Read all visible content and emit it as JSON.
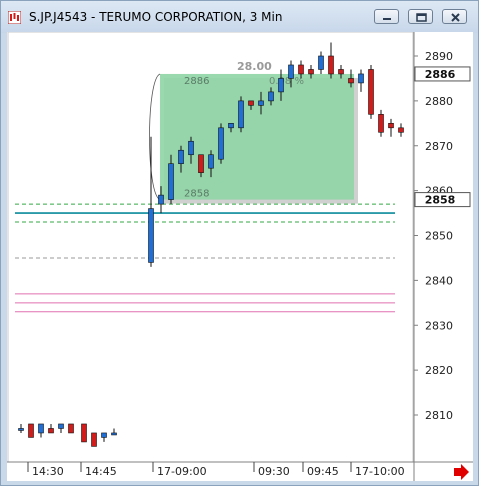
{
  "window": {
    "title": "S.JP.J4543 - TERUMO CORPORATION, 3 Min",
    "buttons": [
      "minimize",
      "restore",
      "close"
    ]
  },
  "colors": {
    "up": "#1f6fd6",
    "down": "#d21c1c",
    "zone": "#8fd4a5",
    "price_tag": "#ffffff"
  },
  "chart_data": {
    "type": "candlestick",
    "ylim": [
      2800,
      2893
    ],
    "yticks": [
      2810,
      2820,
      2830,
      2840,
      2850,
      2860,
      2870,
      2880,
      2890
    ],
    "xticks": [
      "14:30",
      "14:45",
      "17-09:00",
      "09:30",
      "09:45",
      "17-10:00"
    ],
    "price_labels": [
      {
        "value": 2886,
        "text": "2886"
      },
      {
        "value": 2858,
        "text": "2858"
      }
    ],
    "zone": {
      "top": 2886,
      "bottom": 2858,
      "top_label": "2886",
      "bottom_label": "2858",
      "size_label": "28.00",
      "percent_label": "0.98 %"
    },
    "hlines": [
      {
        "value": 2857,
        "color": "#33aa44",
        "style": "dash"
      },
      {
        "value": 2855,
        "color": "#2a9aa8",
        "style": "solid"
      },
      {
        "value": 2853,
        "color": "#33aa44",
        "style": "dash"
      },
      {
        "value": 2845,
        "color": "#999999",
        "style": "dash"
      },
      {
        "value": 2837,
        "color": "#e070b0",
        "style": "solid"
      },
      {
        "value": 2835,
        "color": "#e070b0",
        "style": "solid"
      },
      {
        "value": 2833,
        "color": "#e070b0",
        "style": "solid"
      }
    ],
    "candles": [
      {
        "o": 2807,
        "h": 2808,
        "l": 2806,
        "c": 2807
      },
      {
        "o": 2808,
        "h": 2808,
        "l": 2805,
        "c": 2805
      },
      {
        "o": 2806,
        "h": 2808,
        "l": 2805,
        "c": 2808
      },
      {
        "o": 2807,
        "h": 2808,
        "l": 2806,
        "c": 2806
      },
      {
        "o": 2807,
        "h": 2808,
        "l": 2806,
        "c": 2808
      },
      {
        "o": 2808,
        "h": 2808,
        "l": 2806,
        "c": 2806
      },
      {
        "o": 2808,
        "h": 2808,
        "l": 2804,
        "c": 2804
      },
      {
        "o": 2806,
        "h": 2806,
        "l": 2803,
        "c": 2803
      },
      {
        "o": 2805,
        "h": 2806,
        "l": 2804,
        "c": 2806
      },
      {
        "o": 2806,
        "h": 2807,
        "l": 2806,
        "c": 2806
      },
      {
        "o": 2844,
        "h": 2872,
        "l": 2843,
        "c": 2856
      },
      {
        "o": 2857,
        "h": 2861,
        "l": 2855,
        "c": 2859
      },
      {
        "o": 2858,
        "h": 2868,
        "l": 2857,
        "c": 2866
      },
      {
        "o": 2866,
        "h": 2870,
        "l": 2864,
        "c": 2869
      },
      {
        "o": 2868,
        "h": 2872,
        "l": 2866,
        "c": 2871
      },
      {
        "o": 2868,
        "h": 2868,
        "l": 2863,
        "c": 2864
      },
      {
        "o": 2865,
        "h": 2869,
        "l": 2863,
        "c": 2868
      },
      {
        "o": 2867,
        "h": 2875,
        "l": 2866,
        "c": 2874
      },
      {
        "o": 2874,
        "h": 2875,
        "l": 2873,
        "c": 2875
      },
      {
        "o": 2874,
        "h": 2881,
        "l": 2873,
        "c": 2880
      },
      {
        "o": 2880,
        "h": 2880,
        "l": 2878,
        "c": 2879
      },
      {
        "o": 2879,
        "h": 2882,
        "l": 2877,
        "c": 2880
      },
      {
        "o": 2880,
        "h": 2883,
        "l": 2879,
        "c": 2882
      },
      {
        "o": 2882,
        "h": 2887,
        "l": 2880,
        "c": 2885
      },
      {
        "o": 2885,
        "h": 2889,
        "l": 2883,
        "c": 2888
      },
      {
        "o": 2888,
        "h": 2889,
        "l": 2885,
        "c": 2886
      },
      {
        "o": 2887,
        "h": 2888,
        "l": 2885,
        "c": 2886
      },
      {
        "o": 2887,
        "h": 2891,
        "l": 2886,
        "c": 2890
      },
      {
        "o": 2890,
        "h": 2893,
        "l": 2885,
        "c": 2886
      },
      {
        "o": 2887,
        "h": 2888,
        "l": 2885,
        "c": 2886
      },
      {
        "o": 2885,
        "h": 2887,
        "l": 2883,
        "c": 2884
      },
      {
        "o": 2884,
        "h": 2887,
        "l": 2882,
        "c": 2886
      },
      {
        "o": 2887,
        "h": 2888,
        "l": 2876,
        "c": 2877
      },
      {
        "o": 2877,
        "h": 2878,
        "l": 2872,
        "c": 2873
      },
      {
        "o": 2875,
        "h": 2876,
        "l": 2872,
        "c": 2874
      },
      {
        "o": 2874,
        "h": 2875,
        "l": 2872,
        "c": 2873
      }
    ]
  }
}
